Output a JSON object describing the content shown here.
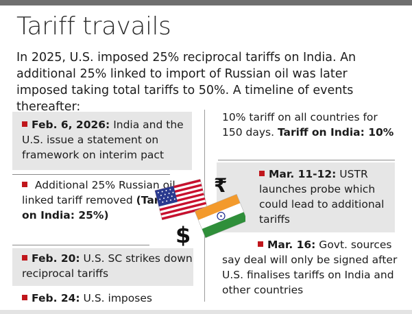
{
  "title": "Tariff travails",
  "intro": "In 2025, U.S. imposed 25% reciprocal tariffs on India. An additional 25% linked to import of Russian oil was later imposed taking total tariffs to 50%. A timeline of events thereafter:",
  "events": {
    "feb6": {
      "date": "Feb. 6, 2026:",
      "text": " India and the U.S. issue a statement on framework on interim pact"
    },
    "removed": {
      "text": " Additional 25% Russian oil-linked tariff removed ",
      "bold": "(Tariff on India: 25%)"
    },
    "feb20": {
      "date": "Feb. 20:",
      "text": " U.S. SC strikes down reciprocal tariffs"
    },
    "feb24": {
      "date": "Feb. 24:",
      "text": " U.S. imposes"
    },
    "feb24_cont": {
      "text": "10% tariff on all countries for 150 days. ",
      "bold": "Tariff on India: 10%"
    },
    "mar11": {
      "date": "Mar. 11-12:",
      "text": " USTR launches probe which could lead to additional tariffs"
    },
    "mar16": {
      "date": "Mar. 16:",
      "text": " Govt. sources say deal will only be signed after U.S. finalises tariffs on India and other countries"
    }
  },
  "icons": {
    "rupee": "₹",
    "dollar": "$",
    "us_flag": "us-flag-icon",
    "india_flag": "india-flag-icon"
  },
  "colors": {
    "bullet": "#c0161c",
    "card_bg": "#e6e6e6",
    "top_bar": "#6f6f6f"
  }
}
